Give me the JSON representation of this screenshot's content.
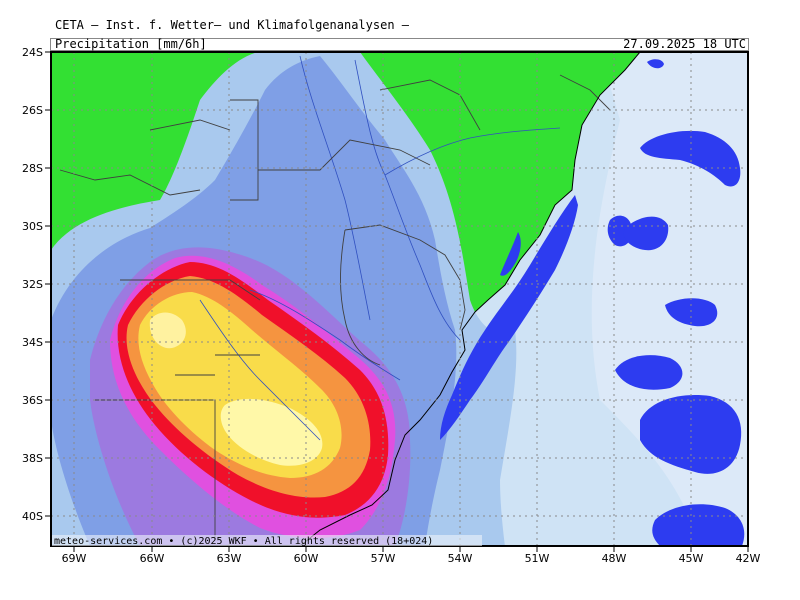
{
  "header": {
    "title": "CETA — Inst. f. Wetter— und Klimafolgenanalysen —",
    "subtitle": "Precipitation [mm/6h]",
    "datetime": "27.09.2025 18 UTC"
  },
  "footer": {
    "credit": "meteo-services.com • (c)2025 WKF • All rights reserved (18+024)"
  },
  "axes": {
    "lat_labels": [
      "24S",
      "26S",
      "28S",
      "30S",
      "32S",
      "34S",
      "36S",
      "38S",
      "40S"
    ],
    "lon_labels": [
      "69W",
      "66W",
      "63W",
      "60W",
      "57W",
      "54W",
      "51W",
      "48W",
      "45W",
      "42W"
    ]
  },
  "colors": {
    "land": "#33e033",
    "ocean": "#cfe3f5",
    "light_blue": "#a9c9ee",
    "mid_blue": "#7f9fe6",
    "violet": "#9c7ae0",
    "magenta": "#e050e0",
    "red": "#f0102a",
    "orange": "#f59440",
    "yellow": "#f9dc4a",
    "light_yellow": "#fff8a8",
    "deep_blue": "#2d3cf0"
  }
}
